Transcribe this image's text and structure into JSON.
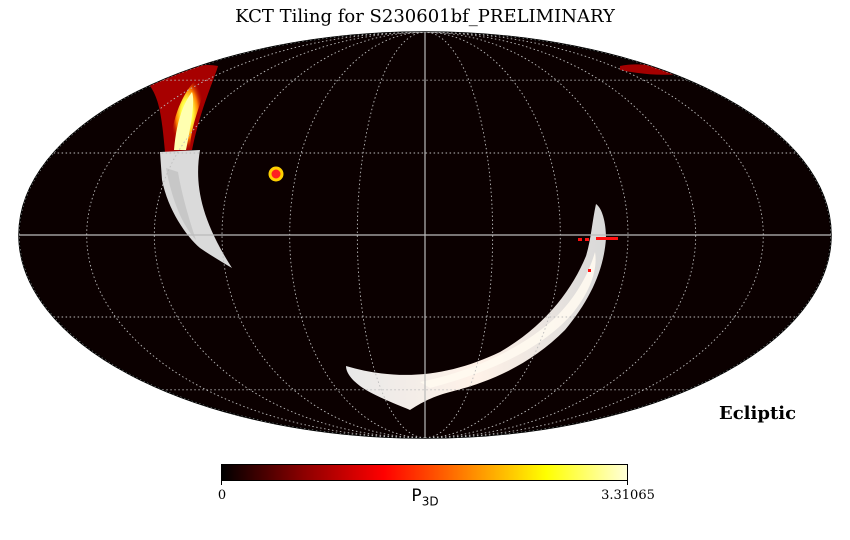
{
  "title": "KCT Tiling for S230601bf_PRELIMINARY",
  "coordinate_frame": "Ecliptic",
  "projection": "mollweide",
  "graticule": true,
  "colorbar": {
    "label_main": "P",
    "label_sub": "3D",
    "min": "0",
    "max": "3.31065",
    "colormap": "hot",
    "colors": [
      "#000000",
      "#8b0000",
      "#ff0000",
      "#ff8000",
      "#ffff00",
      "#ffffd8"
    ]
  },
  "colors": {
    "background": "#0b0000",
    "graticule": "#bbbbbb",
    "tile_marker": "#ff1010",
    "marker_ring": "#ffd000"
  }
}
